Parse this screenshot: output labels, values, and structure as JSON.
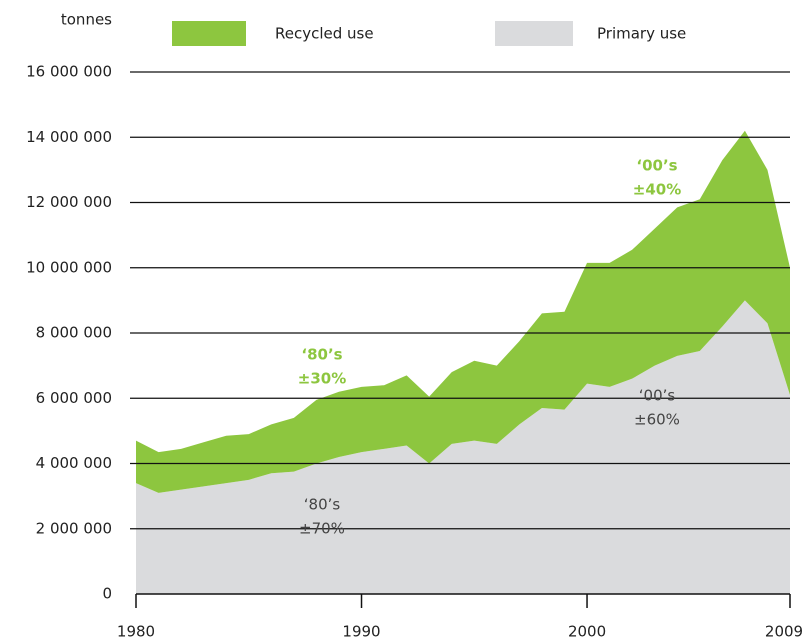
{
  "chart_data": {
    "type": "stacked_area",
    "y_label": "tonnes",
    "x": [
      1980,
      1981,
      1982,
      1983,
      1984,
      1985,
      1986,
      1987,
      1988,
      1989,
      1990,
      1991,
      1992,
      1993,
      1994,
      1995,
      1996,
      1997,
      1998,
      1999,
      2000,
      2001,
      2002,
      2003,
      2004,
      2005,
      2006,
      2007,
      2008,
      2009
    ],
    "series": [
      {
        "name": "Primary use",
        "color": "#dadbdd",
        "values": [
          3400000,
          3100000,
          3200000,
          3300000,
          3400000,
          3500000,
          3700000,
          3750000,
          4000000,
          4200000,
          4350000,
          4450000,
          4550000,
          4000000,
          4600000,
          4700000,
          4600000,
          5200000,
          5700000,
          5650000,
          6450000,
          6350000,
          6600000,
          7000000,
          7300000,
          7450000,
          8200000,
          9000000,
          8300000,
          6100000
        ]
      },
      {
        "name": "Recycled use",
        "color": "#8dc63f",
        "values": [
          1300000,
          1250000,
          1250000,
          1350000,
          1450000,
          1400000,
          1500000,
          1650000,
          1950000,
          2000000,
          2000000,
          1950000,
          2150000,
          2050000,
          2200000,
          2450000,
          2400000,
          2550000,
          2900000,
          3000000,
          3700000,
          3800000,
          3950000,
          4200000,
          4550000,
          4650000,
          5100000,
          5200000,
          4700000,
          3900000
        ]
      }
    ],
    "xlim": [
      1980,
      2009
    ],
    "xticks": [
      1980,
      1990,
      2000,
      2009
    ],
    "ylim": [
      0,
      16000000
    ],
    "yticks": [
      0,
      {
        "value": 2000000,
        "label": "2 000 000"
      },
      {
        "value": 4000000,
        "label": "4 000 000"
      },
      {
        "value": 6000000,
        "label": "6 000 000"
      },
      {
        "value": 8000000,
        "label": "8 000 000"
      },
      {
        "value": 10000000,
        "label": "10 000 000"
      },
      {
        "value": 12000000,
        "label": "12 000 000"
      },
      {
        "value": 14000000,
        "label": "14 000 000"
      },
      {
        "value": 16000000,
        "label": "16 000 000"
      }
    ],
    "grid": true,
    "annotations": [
      [
        "‘80’s",
        "±30%"
      ],
      [
        "‘00’s",
        "±40%"
      ],
      [
        "‘00’s",
        "±60%"
      ],
      [
        "‘80’s",
        "±70%"
      ]
    ]
  }
}
